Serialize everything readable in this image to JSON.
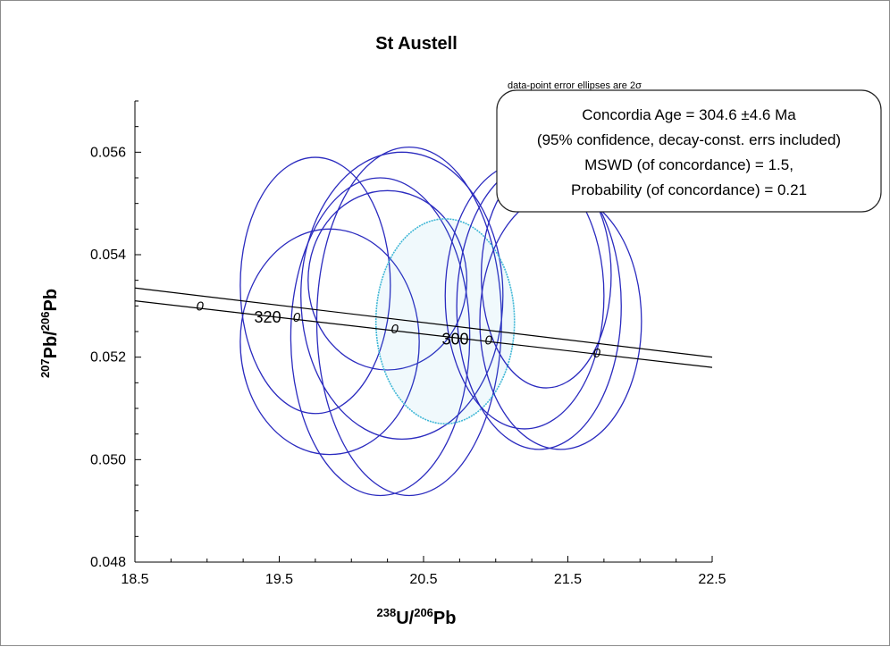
{
  "chart_data": {
    "type": "scatter",
    "title": "St Austell",
    "xlabel": {
      "sup1": "238",
      "base1": "U/",
      "sup2": "206",
      "base2": "Pb"
    },
    "ylabel": {
      "sup1": "207",
      "base1": "Pb/",
      "sup2": "206",
      "base2": "Pb"
    },
    "xlim": [
      18.5,
      22.5
    ],
    "ylim": [
      0.048,
      0.057
    ],
    "x_ticks": [
      "18.5",
      "19.5",
      "20.5",
      "21.5",
      "22.5"
    ],
    "x_tick_values": [
      18.5,
      19.5,
      20.5,
      21.5,
      22.5
    ],
    "y_ticks": [
      "0.048",
      "0.050",
      "0.052",
      "0.054",
      "0.056"
    ],
    "y_tick_values": [
      0.048,
      0.05,
      0.052,
      0.054,
      0.056
    ],
    "note": "data-point error ellipses are 2σ",
    "info_box": [
      "Concordia  Age = 304.6 ±4.6 Ma",
      "(95% confidence, decay-const. errs included)",
      "MSWD (of concordance) = 1.5,",
      "Probability (of concordance) = 0.21"
    ],
    "concordia": {
      "band_upper": [
        [
          18.5,
          0.05335
        ],
        [
          22.5,
          0.052
        ]
      ],
      "band_lower": [
        [
          18.5,
          0.0531
        ],
        [
          22.5,
          0.0518
        ]
      ],
      "age_labels": [
        {
          "text": "320",
          "x": 19.42,
          "y": 0.05264
        },
        {
          "text": "300",
          "x": 20.72,
          "y": 0.05221
        }
      ],
      "markers": [
        {
          "text": "0",
          "x": 18.95,
          "y": 0.053
        },
        {
          "text": "0",
          "x": 19.62,
          "y": 0.05278
        },
        {
          "text": "0",
          "x": 20.3,
          "y": 0.05255
        },
        {
          "text": "0",
          "x": 20.95,
          "y": 0.05233
        },
        {
          "text": "0",
          "x": 21.7,
          "y": 0.05208
        }
      ]
    },
    "ellipses": [
      {
        "cx": 19.75,
        "cy": 0.0534,
        "rx": 0.52,
        "ry": 0.0025,
        "color": "#2b2bbf"
      },
      {
        "cx": 19.85,
        "cy": 0.0523,
        "rx": 0.62,
        "ry": 0.0022,
        "color": "#2b2bbf"
      },
      {
        "cx": 20.35,
        "cy": 0.0532,
        "rx": 0.7,
        "ry": 0.0028,
        "color": "#2b2bbf"
      },
      {
        "cx": 20.2,
        "cy": 0.0524,
        "rx": 0.62,
        "ry": 0.0031,
        "color": "#2b2bbf"
      },
      {
        "cx": 20.4,
        "cy": 0.0527,
        "rx": 0.64,
        "ry": 0.0034,
        "color": "#2b2bbf"
      },
      {
        "cx": 20.25,
        "cy": 0.0535,
        "rx": 0.55,
        "ry": 0.00175,
        "color": "#2b2bbf"
      },
      {
        "cx": 20.65,
        "cy": 0.0527,
        "rx": 0.48,
        "ry": 0.002,
        "color": "#3fb7d6"
      },
      {
        "cx": 21.3,
        "cy": 0.053,
        "rx": 0.57,
        "ry": 0.0028,
        "color": "#2b2bbf"
      },
      {
        "cx": 21.45,
        "cy": 0.0527,
        "rx": 0.56,
        "ry": 0.0025,
        "color": "#2b2bbf"
      },
      {
        "cx": 21.2,
        "cy": 0.0532,
        "rx": 0.55,
        "ry": 0.0026,
        "color": "#2b2bbf"
      },
      {
        "cx": 21.35,
        "cy": 0.0536,
        "rx": 0.45,
        "ry": 0.0022,
        "color": "#2b2bbf"
      }
    ]
  }
}
